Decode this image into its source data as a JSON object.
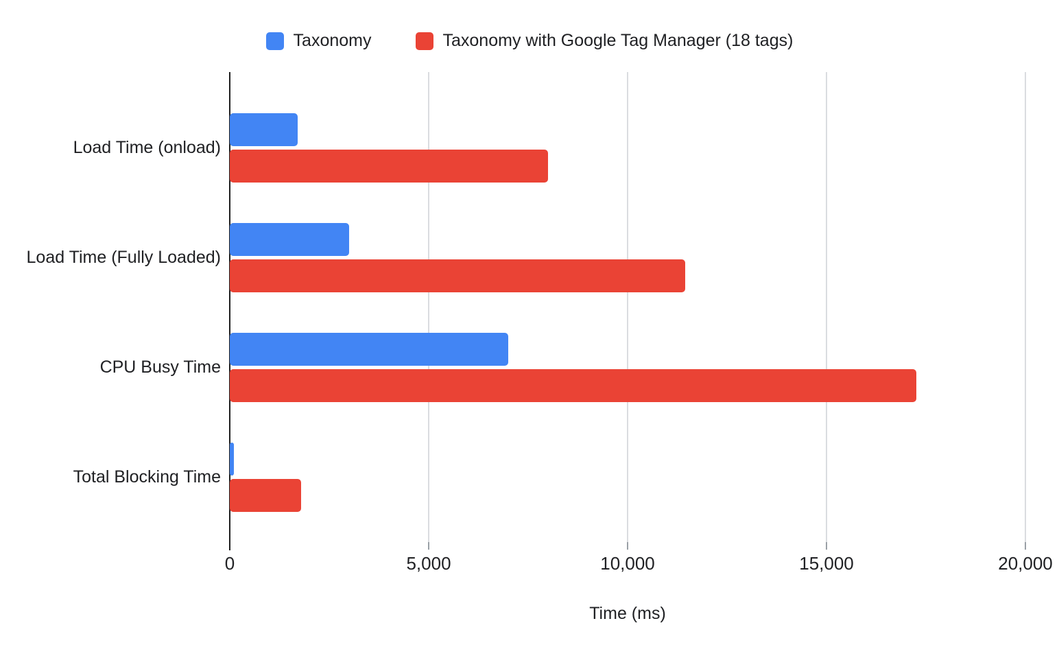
{
  "chart_data": {
    "type": "bar",
    "orientation": "horizontal",
    "title": "",
    "xlabel": "Time (ms)",
    "ylabel": "",
    "xlim": [
      0,
      20000
    ],
    "grid": true,
    "legend_position": "top",
    "categories": [
      "Load Time (onload)",
      "Load Time (Fully Loaded)",
      "CPU Busy Time",
      "Total Blocking Time"
    ],
    "series": [
      {
        "name": "Taxonomy",
        "color": "#4285F4",
        "values": [
          1700,
          3000,
          7000,
          100
        ]
      },
      {
        "name": "Taxonomy with Google Tag Manager (18 tags)",
        "color": "#EA4335",
        "values": [
          8000,
          11450,
          17250,
          1800
        ]
      }
    ],
    "x_ticks": [
      {
        "value": 0,
        "label": "0"
      },
      {
        "value": 5000,
        "label": "5,000"
      },
      {
        "value": 10000,
        "label": "10,000"
      },
      {
        "value": 15000,
        "label": "15,000"
      },
      {
        "value": 20000,
        "label": "20,000"
      }
    ]
  }
}
